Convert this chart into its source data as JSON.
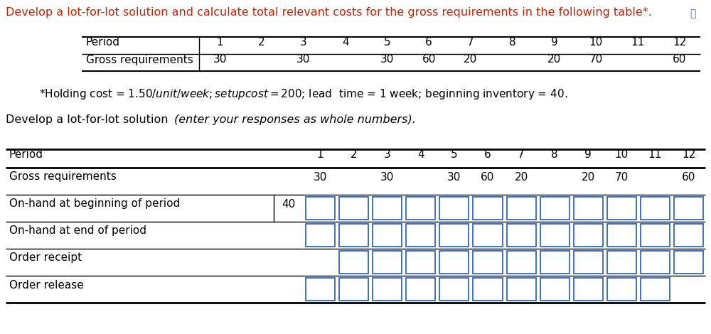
{
  "title_line1": "Develop a lot-for-lot solution and calculate total relevant costs for the gross requirements in the following table*.",
  "footnote": "*Holding cost = $1.50/unit/week; setup  cost = $200; lead  time = 1 week; beginning inventory = 40.",
  "bottom_para_normal": "Develop a lot-for-lot solution ",
  "bottom_para_italic": "(enter your responses as whole numbers).",
  "gross_req": [
    "30",
    "",
    "30",
    "",
    "30",
    "60",
    "20",
    "",
    "20",
    "70",
    "",
    "60"
  ],
  "periods": [
    "1",
    "2",
    "3",
    "4",
    "5",
    "6",
    "7",
    "8",
    "9",
    "10",
    "11",
    "12"
  ],
  "rows": [
    {
      "label": "Gross requirements",
      "pre": "",
      "has_boxes": false
    },
    {
      "label": "On-hand at beginning of period",
      "pre": "40",
      "has_boxes": true,
      "skip_cols": []
    },
    {
      "label": "On-hand at end of period",
      "pre": "",
      "has_boxes": true,
      "skip_cols": []
    },
    {
      "label": "Order receipt",
      "pre": "",
      "has_boxes": true,
      "skip_cols": [
        0
      ]
    },
    {
      "label": "Order release",
      "pre": "",
      "has_boxes": true,
      "skip_cols": [
        11
      ]
    }
  ],
  "text_color": "#000000",
  "red_color": "#cc2200",
  "box_color": "#3366bb",
  "bg_color": "#ffffff"
}
